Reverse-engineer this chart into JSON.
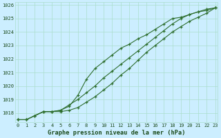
{
  "title": "Graphe pression niveau de la mer (hPa)",
  "bg_color": "#cceeff",
  "grid_color": "#aaddcc",
  "line_color": "#2d6e2d",
  "text_color": "#1a4a1a",
  "x_labels": [
    "0",
    "1",
    "2",
    "3",
    "4",
    "5",
    "6",
    "7",
    "8",
    "9",
    "10",
    "11",
    "12",
    "13",
    "14",
    "15",
    "16",
    "17",
    "18",
    "19",
    "20",
    "21",
    "22",
    "23"
  ],
  "y_ticks": [
    1018,
    1019,
    1020,
    1021,
    1022,
    1023,
    1024,
    1025,
    1026
  ],
  "ylim": [
    1017.3,
    1026.2
  ],
  "xlim": [
    -0.3,
    23.3
  ],
  "line1": [
    1017.5,
    1017.5,
    1017.8,
    1018.1,
    1018.1,
    1018.1,
    1018.2,
    1018.4,
    1018.8,
    1019.2,
    1019.7,
    1020.2,
    1020.8,
    1021.3,
    1021.9,
    1022.5,
    1023.0,
    1023.5,
    1024.0,
    1024.4,
    1024.8,
    1025.1,
    1025.4,
    1025.8
  ],
  "line2": [
    1017.5,
    1017.5,
    1017.8,
    1018.1,
    1018.1,
    1018.2,
    1018.5,
    1019.3,
    1020.5,
    1021.3,
    1021.8,
    1022.3,
    1022.8,
    1023.1,
    1023.5,
    1023.8,
    1024.2,
    1024.6,
    1025.0,
    1025.1,
    1025.3,
    1025.5,
    1025.6,
    1025.8
  ],
  "line3": [
    1017.5,
    1017.5,
    1017.8,
    1018.1,
    1018.1,
    1018.2,
    1018.6,
    1019.0,
    1019.5,
    1020.0,
    1020.6,
    1021.1,
    1021.6,
    1022.1,
    1022.6,
    1023.1,
    1023.6,
    1024.1,
    1024.6,
    1025.0,
    1025.3,
    1025.5,
    1025.7,
    1025.8
  ]
}
